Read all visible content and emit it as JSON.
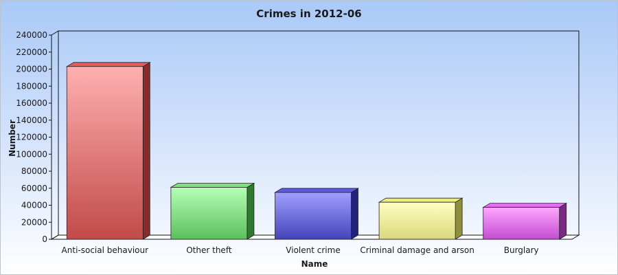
{
  "chart_data": {
    "type": "bar",
    "title": "Crimes in 2012-06",
    "xlabel": "Name",
    "ylabel": "Number",
    "categories": [
      "Anti-social behaviour",
      "Other theft",
      "Violent crime",
      "Criminal damage and arson",
      "Burglary"
    ],
    "values": [
      203000,
      61000,
      55000,
      43500,
      37500
    ],
    "yticks": [
      0,
      20000,
      40000,
      60000,
      80000,
      100000,
      120000,
      140000,
      160000,
      180000,
      200000,
      220000,
      240000
    ],
    "ylim": [
      0,
      240000
    ],
    "colors": [
      {
        "top": "#ffb0b0",
        "bottom": "#c24a4a",
        "side": "#8a2a2a",
        "cap": "#e65c5c"
      },
      {
        "top": "#b6ffb6",
        "bottom": "#5cc05c",
        "side": "#2f7a2f",
        "cap": "#7fe07f"
      },
      {
        "top": "#a0a0ff",
        "bottom": "#4444bb",
        "side": "#22227a",
        "cap": "#5b5bdd"
      },
      {
        "top": "#ffffc2",
        "bottom": "#d9d97c",
        "side": "#8f8f3d",
        "cap": "#eded7a"
      },
      {
        "top": "#ffa6ff",
        "bottom": "#c34dd1",
        "side": "#7a2a85",
        "cap": "#e070ec"
      }
    ],
    "grid": false,
    "legend": "none"
  }
}
